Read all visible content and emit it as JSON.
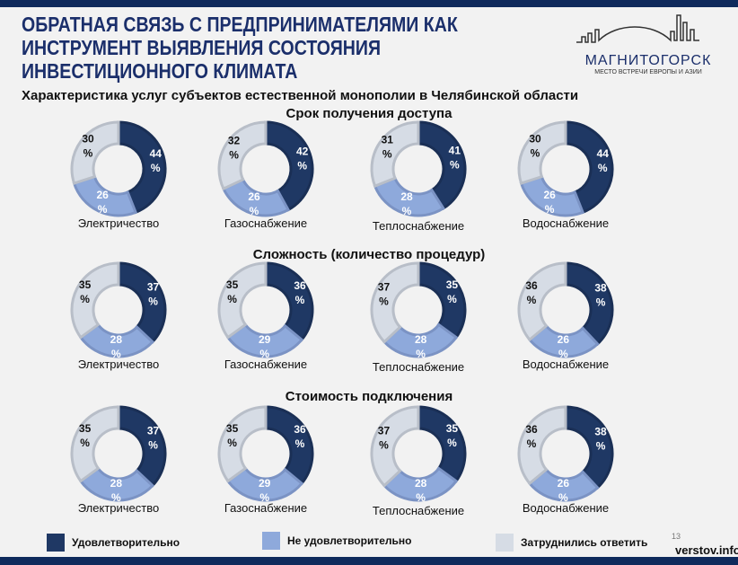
{
  "header": {
    "title": "ОБРАТНАЯ СВЯЗЬ С ПРЕДПРИНИМАТЕЛЯМИ КАК ИНСТРУМЕНТ ВЫЯВЛЕНИЯ СОСТОЯНИЯ ИНВЕСТИЦИОННОГО КЛИМАТА",
    "logo_name": "МАГНИТОГОРСК",
    "logo_tagline": "МЕСТО ВСТРЕЧИ ЕВРОПЫ И АЗИИ",
    "subtitle": "Характеристика услуг субъектов естественной монополии в Челябинской области"
  },
  "colors": {
    "satisfactory": "#1f3864",
    "unsatisfactory": "#8ea9db",
    "undecided": "#d6dce5"
  },
  "chart_data": {
    "type": "pie",
    "subtype": "donut",
    "legend": [
      "Удовлетворительно",
      "Не удовлетворительно",
      "Затруднились ответить"
    ],
    "legend_placement": "bottom",
    "categories": [
      "Электричество",
      "Газоснабжение",
      "Теплоснабжение",
      "Водоснабжение"
    ],
    "sections": [
      {
        "title": "Срок получения доступа",
        "values": [
          [
            44,
            26,
            30
          ],
          [
            42,
            26,
            32
          ],
          [
            41,
            28,
            31
          ],
          [
            44,
            26,
            30
          ]
        ]
      },
      {
        "title": "Сложность (количество процедур)",
        "values": [
          [
            37,
            28,
            35
          ],
          [
            36,
            29,
            35
          ],
          [
            35,
            28,
            37
          ],
          [
            38,
            26,
            36
          ]
        ]
      },
      {
        "title": "Стоимость подключения",
        "values": [
          [
            37,
            28,
            35
          ],
          [
            36,
            29,
            35
          ],
          [
            35,
            28,
            37
          ],
          [
            38,
            26,
            36
          ]
        ]
      }
    ]
  },
  "footer": {
    "page_number": "13",
    "source": "verstov.info"
  }
}
